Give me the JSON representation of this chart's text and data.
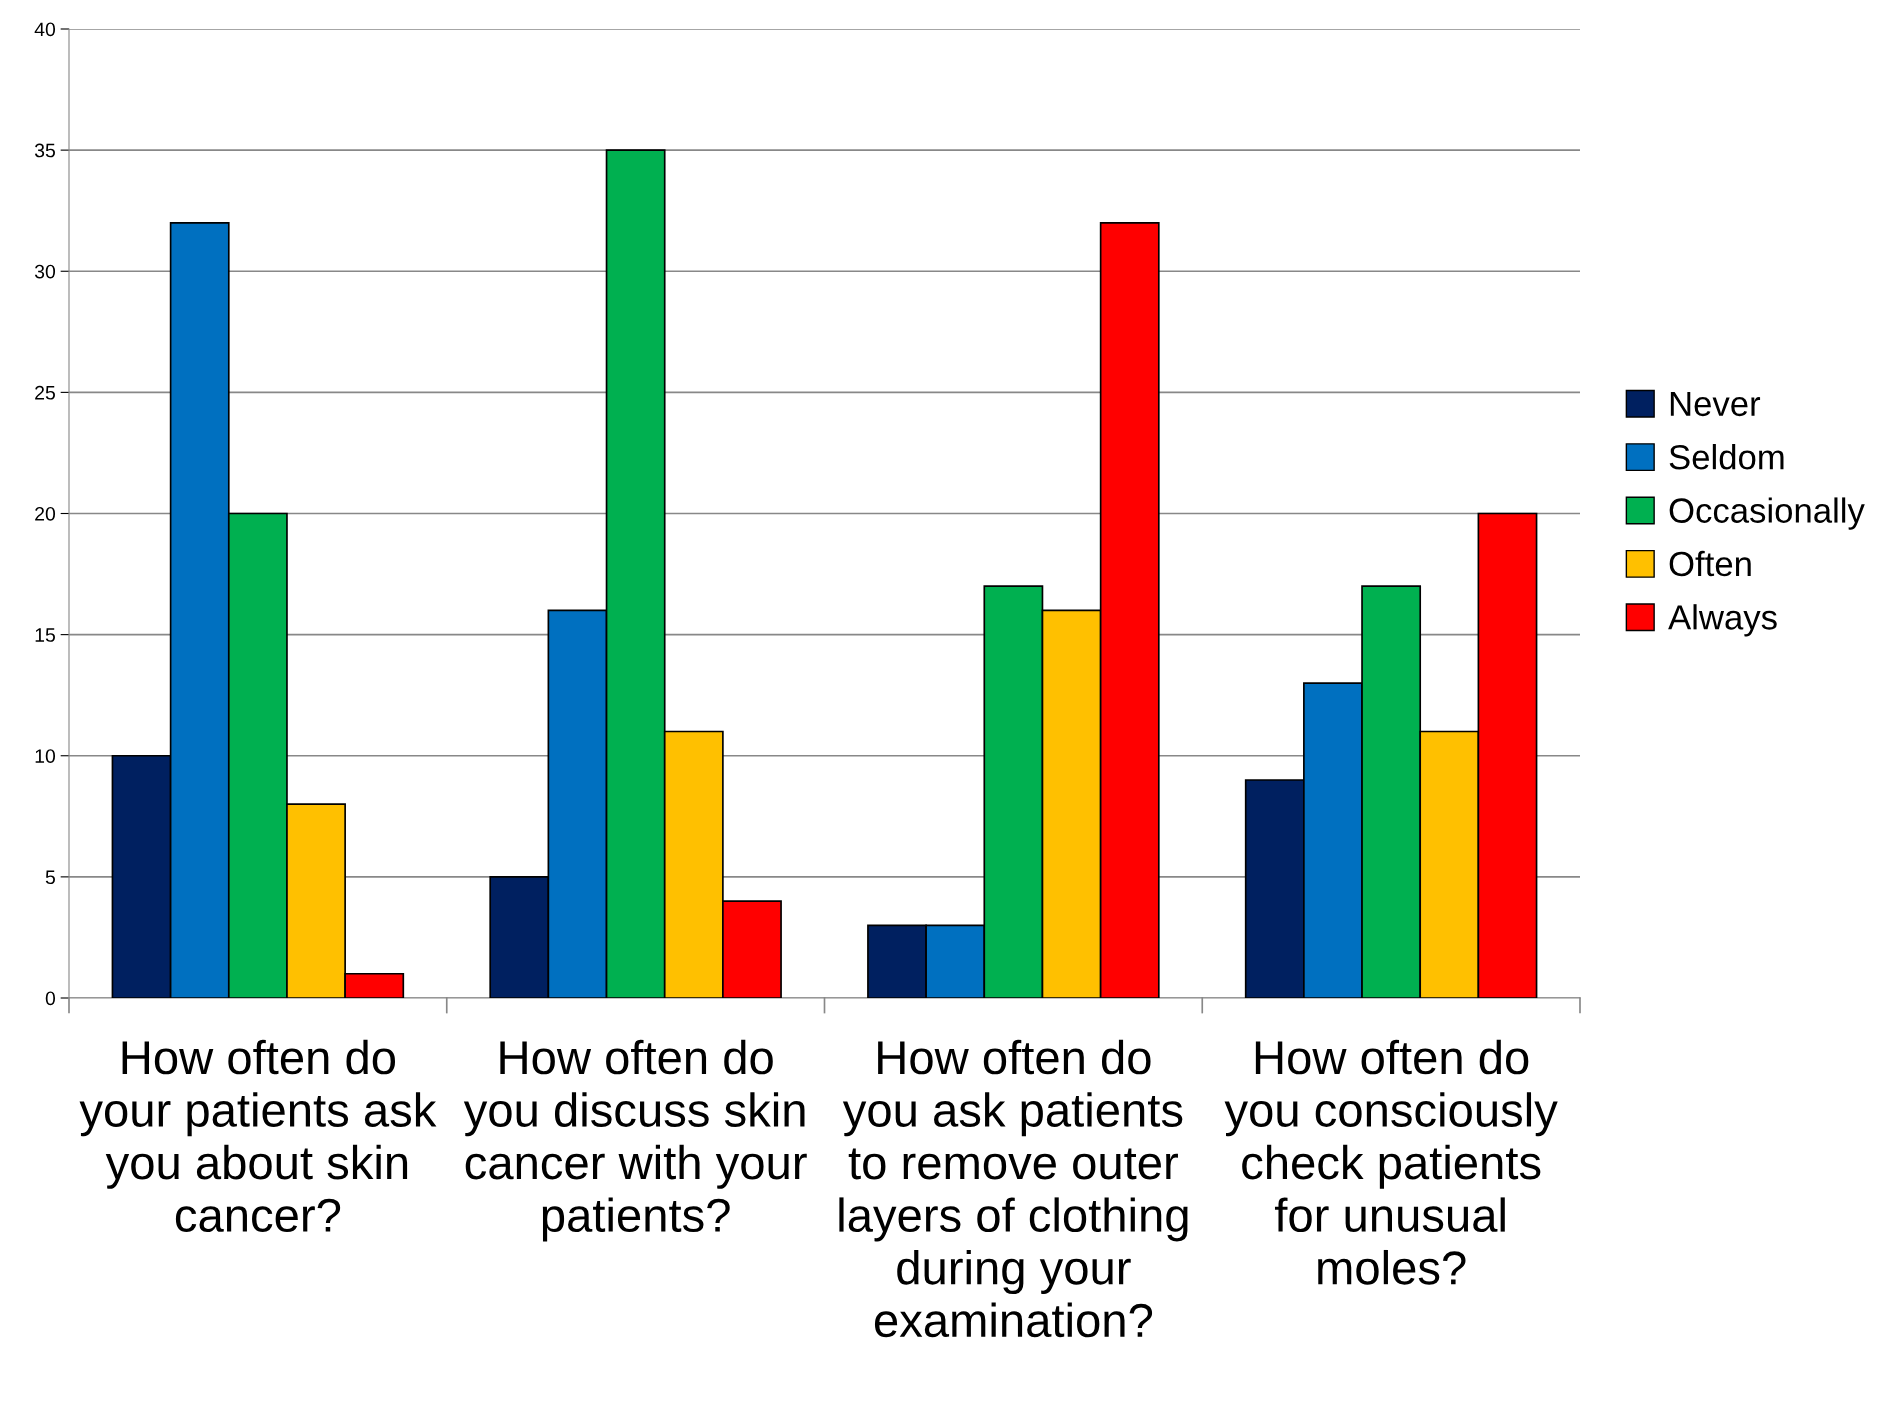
{
  "chart_data": {
    "type": "bar",
    "categories": [
      "How often do\nyour patients ask\nyou about skin\ncancer?",
      "How often do\nyou discuss skin\ncancer with your\npatients?",
      "How often do\nyou ask patients\nto remove outer\nlayers of clothing\nduring your\nexamination?",
      "How often do\nyou consciously\ncheck patients\nfor unusual\nmoles?"
    ],
    "series": [
      {
        "name": "Never",
        "color": "#002060",
        "values": [
          10,
          5,
          3,
          9
        ]
      },
      {
        "name": "Seldom",
        "color": "#0070c0",
        "values": [
          32,
          16,
          3,
          13
        ]
      },
      {
        "name": "Occasionally",
        "color": "#00b050",
        "values": [
          20,
          35,
          17,
          17
        ]
      },
      {
        "name": "Often",
        "color": "#ffc000",
        "values": [
          8,
          11,
          16,
          11
        ]
      },
      {
        "name": "Always",
        "color": "#ff0000",
        "values": [
          1,
          4,
          32,
          20
        ]
      }
    ],
    "ylim": [
      0,
      40
    ],
    "yticks": [
      0,
      5,
      10,
      15,
      20,
      25,
      30,
      35,
      40
    ],
    "grid": "y",
    "legend": "right"
  }
}
